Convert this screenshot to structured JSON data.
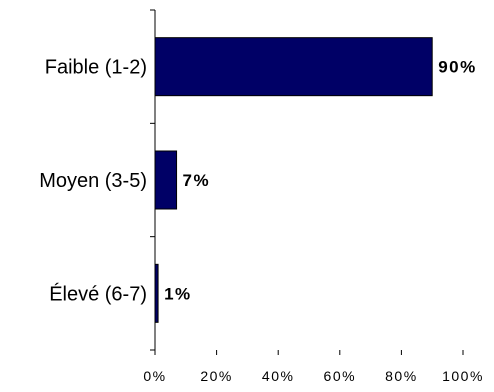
{
  "chart_data": {
    "type": "bar",
    "orientation": "horizontal",
    "categories": [
      "Faible (1-2)",
      "Moyen (3-5)",
      "Élevé (6-7)"
    ],
    "values": [
      90,
      7,
      1
    ],
    "data_labels": [
      "90%",
      "7%",
      "1%"
    ],
    "xlim": [
      0,
      100
    ],
    "x_ticks": [
      0,
      20,
      40,
      60,
      80,
      100
    ],
    "x_tick_labels": [
      "0%",
      "20%",
      "40%",
      "60%",
      "80%",
      "100%"
    ],
    "title": "",
    "xlabel": "",
    "ylabel": "",
    "grid": false,
    "legend": "none",
    "bar_color": "#000066"
  }
}
